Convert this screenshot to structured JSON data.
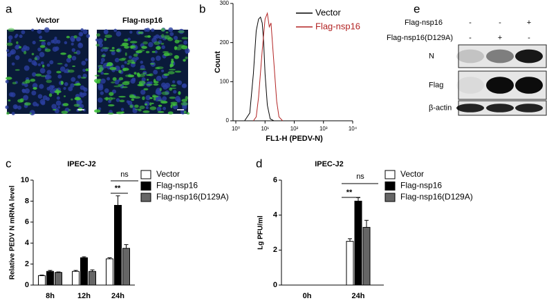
{
  "panel_a": {
    "label": "a",
    "images": [
      {
        "title": "Vector"
      },
      {
        "title": "Flag-nsp16"
      }
    ]
  },
  "panel_e": {
    "label": "e",
    "conditions": [
      {
        "name": "Flag-nsp16",
        "signs": [
          "-",
          "-",
          "+"
        ]
      },
      {
        "name": "Flag-nsp16(D129A)",
        "signs": [
          "-",
          "+",
          "-"
        ]
      }
    ],
    "blots": [
      "N",
      "Flag",
      "β-actin"
    ]
  },
  "chart_data": [
    {
      "type": "line",
      "panel": "b",
      "xlabel": "FL1-H (PEDV-N)",
      "ylabel": "Count",
      "xscale": "log",
      "xlim": [
        1,
        10000
      ],
      "xticks": [
        {
          "value": 1,
          "label": "10⁰"
        },
        {
          "value": 10,
          "label": "10¹"
        },
        {
          "value": 100,
          "label": "10²"
        },
        {
          "value": 1000,
          "label": "10³"
        },
        {
          "value": 10000,
          "label": "10⁴"
        }
      ],
      "ylim": [
        0,
        300
      ],
      "yticks": [
        0,
        100,
        200,
        300
      ],
      "series": [
        {
          "name": "Vector",
          "color": "#000000",
          "x": [
            2,
            3,
            4,
            5,
            6,
            7,
            8,
            9,
            10,
            12,
            15,
            20
          ],
          "values": [
            0,
            20,
            120,
            230,
            260,
            265,
            250,
            200,
            120,
            40,
            5,
            0
          ]
        },
        {
          "name": "Flag-nsp16",
          "color": "#b22222",
          "x": [
            4,
            5,
            6,
            8,
            10,
            12,
            14,
            16,
            20,
            25,
            30,
            40
          ],
          "values": [
            0,
            10,
            60,
            180,
            260,
            275,
            240,
            250,
            150,
            50,
            10,
            0
          ]
        }
      ]
    },
    {
      "type": "bar",
      "panel": "c",
      "title": "IPEC-J2",
      "ylabel": "Relative PEDV N mRNA level",
      "categories": [
        "8h",
        "12h",
        "24h"
      ],
      "ylim": [
        0,
        10
      ],
      "yticks": [
        0,
        2,
        4,
        6,
        8,
        10
      ],
      "series": [
        {
          "name": "Vector",
          "color": "#ffffff",
          "values": [
            0.9,
            1.3,
            2.5
          ],
          "errors": [
            0.05,
            0.1,
            0.1
          ]
        },
        {
          "name": "Flag-nsp16",
          "color": "#000000",
          "values": [
            1.3,
            2.6,
            7.6
          ],
          "errors": [
            0.1,
            0.1,
            0.9
          ]
        },
        {
          "name": "Flag-nsp16(D129A)",
          "color": "#666666",
          "values": [
            1.2,
            1.3,
            3.5
          ],
          "errors": [
            0.05,
            0.15,
            0.35
          ]
        }
      ],
      "annotations": [
        "**",
        "ns"
      ]
    },
    {
      "type": "bar",
      "panel": "d",
      "title": "IPEC-J2",
      "ylabel": "Lg PFU/ml",
      "categories": [
        "0h",
        "24h"
      ],
      "ylim": [
        0,
        6
      ],
      "yticks": [
        0,
        2,
        4,
        6
      ],
      "series": [
        {
          "name": "Vector",
          "color": "#ffffff",
          "values": [
            0,
            2.5
          ],
          "errors": [
            0,
            0.15
          ]
        },
        {
          "name": "Flag-nsp16",
          "color": "#000000",
          "values": [
            0,
            4.8
          ],
          "errors": [
            0,
            0.2
          ]
        },
        {
          "name": "Flag-nsp16(D129A)",
          "color": "#666666",
          "values": [
            0,
            3.3
          ],
          "errors": [
            0,
            0.4
          ]
        }
      ],
      "annotations": [
        "**",
        "ns"
      ]
    }
  ]
}
